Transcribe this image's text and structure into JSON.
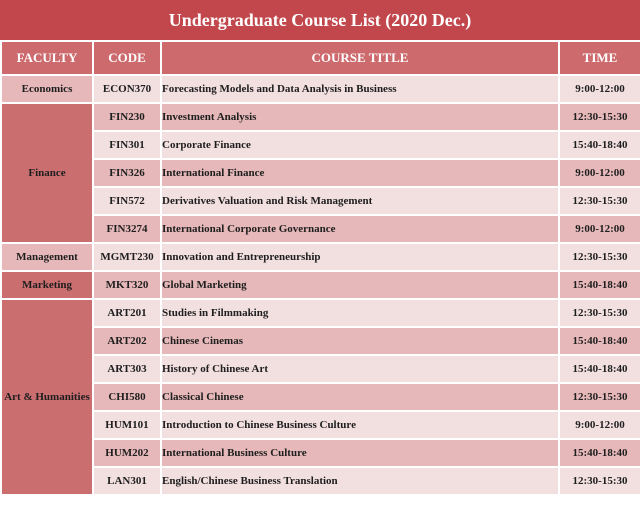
{
  "title": "Undergraduate Course List (2020 Dec.)",
  "headers": {
    "faculty": "FACULTY",
    "code": "CODE",
    "course_title": "COURSE TITLE",
    "time": "TIME"
  },
  "faculties": [
    "Economics",
    "Finance",
    "Management",
    "Marketing",
    "Art & Humanities"
  ],
  "rows": [
    {
      "code": "ECON370",
      "title": "Forecasting Models and Data Analysis in Business",
      "time": "9:00-12:00"
    },
    {
      "code": "FIN230",
      "title": "Investment Analysis",
      "time": "12:30-15:30"
    },
    {
      "code": "FIN301",
      "title": "Corporate Finance",
      "time": "15:40-18:40"
    },
    {
      "code": "FIN326",
      "title": "International Finance",
      "time": "9:00-12:00"
    },
    {
      "code": "FIN572",
      "title": "Derivatives Valuation and Risk Management",
      "time": "12:30-15:30"
    },
    {
      "code": "FIN3274",
      "title": "International Corporate Governance",
      "time": "9:00-12:00"
    },
    {
      "code": "MGMT230",
      "title": "Innovation and Entrepreneurship",
      "time": "12:30-15:30"
    },
    {
      "code": "MKT320",
      "title": "Global Marketing",
      "time": "15:40-18:40"
    },
    {
      "code": "ART201",
      "title": "Studies in Filmmaking",
      "time": "12:30-15:30"
    },
    {
      "code": "ART202",
      "title": "Chinese Cinemas",
      "time": "15:40-18:40"
    },
    {
      "code": "ART303",
      "title": "History of Chinese Art",
      "time": "15:40-18:40"
    },
    {
      "code": "CHI580",
      "title": "Classical Chinese",
      "time": "12:30-15:30"
    },
    {
      "code": "HUM101",
      "title": "Introduction to Chinese Business Culture",
      "time": "9:00-12:00"
    },
    {
      "code": "HUM202",
      "title": "International Business Culture",
      "time": "15:40-18:40"
    },
    {
      "code": "LAN301",
      "title": "English/Chinese Business Translation",
      "time": "12:30-15:30"
    }
  ],
  "colors": {
    "title_bg": "#c1474c",
    "header_bg": "#cc6a6d",
    "row_light": "#f2dfe0",
    "row_dark": "#e6b8b9"
  }
}
